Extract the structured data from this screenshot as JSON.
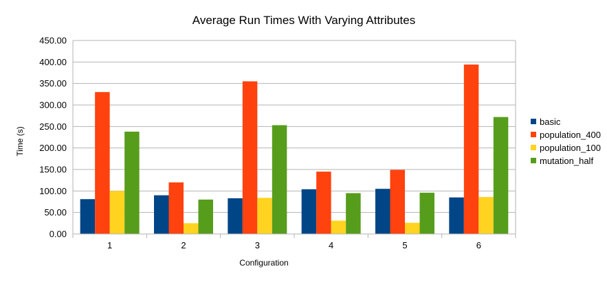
{
  "chart_data": {
    "type": "bar",
    "title": "Average Run Times With Varying Attributes",
    "xlabel": "Configuration",
    "ylabel": "Time (s)",
    "categories": [
      "1",
      "2",
      "3",
      "4",
      "5",
      "6"
    ],
    "ylim": [
      0,
      450
    ],
    "ytick_step": 50,
    "ytick_labels": [
      "0.00",
      "50.00",
      "100.00",
      "150.00",
      "200.00",
      "250.00",
      "300.00",
      "350.00",
      "400.00",
      "450.00"
    ],
    "grid": true,
    "legend_position": "right",
    "series": [
      {
        "name": "basic",
        "color": "#004586",
        "values": [
          81,
          90,
          83,
          104,
          105,
          85
        ]
      },
      {
        "name": "population_400",
        "color": "#ff420e",
        "values": [
          330,
          120,
          355,
          145,
          149,
          394
        ]
      },
      {
        "name": "population_100",
        "color": "#ffd320",
        "values": [
          100,
          25,
          84,
          31,
          26,
          86
        ]
      },
      {
        "name": "mutation_half",
        "color": "#579d1c",
        "values": [
          238,
          80,
          253,
          95,
          96,
          272
        ]
      }
    ]
  }
}
